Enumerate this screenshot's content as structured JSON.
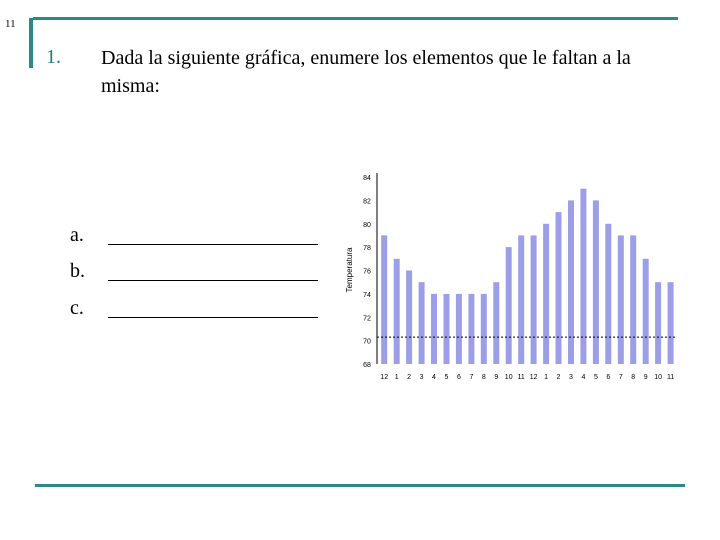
{
  "slide": {
    "number": "11"
  },
  "question": {
    "number": "1.",
    "text": "Dada la siguiente gráfica, enumere los elementos que le faltan a la misma:"
  },
  "answers": [
    {
      "letter": "a."
    },
    {
      "letter": "b."
    },
    {
      "letter": "c."
    }
  ],
  "chart_data": {
    "type": "bar",
    "ylabel": "Temperatura",
    "ytick_labels": [
      "68",
      "70",
      "72",
      "74",
      "76",
      "78",
      "80",
      "82",
      "84"
    ],
    "ylim": [
      68,
      84
    ],
    "bar_color": "#9c9ee8",
    "categories": [
      "12",
      "1",
      "2",
      "3",
      "4",
      "5",
      "6",
      "7",
      "8",
      "9",
      "10",
      "11",
      "12",
      "1",
      "2",
      "3",
      "4",
      "5",
      "6",
      "7",
      "8",
      "9",
      "10",
      "11"
    ],
    "values": [
      79,
      77,
      76,
      75,
      74,
      74,
      74,
      74,
      74,
      75,
      78,
      79,
      79,
      80,
      81,
      82,
      83,
      82,
      80,
      79,
      79,
      77,
      75,
      75
    ],
    "reference_line": 70.3
  }
}
